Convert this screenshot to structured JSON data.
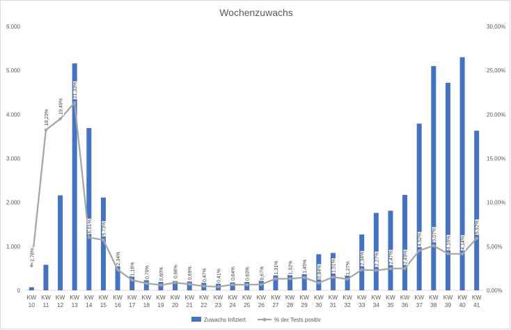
{
  "chart_data": {
    "type": "bar",
    "title": "Wochenzuwachs",
    "categories": [
      "KW 10",
      "KW 11",
      "KW 12",
      "KW 13",
      "KW 14",
      "KW 15",
      "KW 16",
      "KW 17",
      "KW 18",
      "KW 19",
      "KW 20",
      "KW 21",
      "KW 22",
      "KW 23",
      "KW 24",
      "KW 25",
      "KW 26",
      "KW 27",
      "KW 28",
      "KW 29",
      "KW 30",
      "KW 31",
      "KW 32",
      "KW 33",
      "KW 34",
      "KW 35",
      "KW 36",
      "KW 37",
      "KW 38",
      "KW 39",
      "KW 40",
      "KW 41"
    ],
    "y_ticks": [
      "0",
      "1.000",
      "2.000",
      "3.000",
      "4.000",
      "5.000",
      "6.000"
    ],
    "y2_ticks": [
      "0,00%",
      "5,00%",
      "10,00%",
      "15,00%",
      "20,00%",
      "25,00%",
      "30,00%"
    ],
    "ylim": [
      0,
      6000
    ],
    "y2lim": [
      0,
      30
    ],
    "grid": false,
    "legend_position": "bottom",
    "series": [
      {
        "name": "Zuwachs Infiziert",
        "type": "bar",
        "axis": "left",
        "color": "#4472c4",
        "values": [
          70,
          580,
          2160,
          5160,
          3690,
          2110,
          560,
          330,
          230,
          190,
          210,
          200,
          170,
          150,
          180,
          190,
          220,
          340,
          350,
          370,
          820,
          850,
          340,
          1270,
          1760,
          1810,
          2170,
          3790,
          5100,
          4720,
          5300,
          3630
        ]
      },
      {
        "name": "% der Tests positiv",
        "type": "line",
        "axis": "right",
        "color": "#a5a5a5",
        "values": [
          2.78,
          18.23,
          19.49,
          21.33,
          6.01,
          5.73,
          2.34,
          1.16,
          0.79,
          0.6,
          0.86,
          0.69,
          0.47,
          0.41,
          0.64,
          0.63,
          0.67,
          1.31,
          1.32,
          1.45,
          0.84,
          1.51,
          1.27,
          2.34,
          2.27,
          2.47,
          2.49,
          4.52,
          5.07,
          4.16,
          4.14,
          5.92
        ],
        "labels": [
          "2,78%",
          "18,23%",
          "19,49%",
          "21,33%",
          "6,01%",
          "5,73%",
          "2,34%",
          "1,16%",
          "0,79%",
          "0,60%",
          "0,86%",
          "0,69%",
          "0,47%",
          "0,41%",
          "0,64%",
          "0,63%",
          "0,67%",
          "1,31%",
          "1,32%",
          "1,45%",
          "0,84%",
          "1,51%",
          "1,27%",
          "2,34%",
          "2,27%",
          "2,47%",
          "2,49%",
          "4,52%",
          "5,07%",
          "4,16%",
          "4,14%",
          "5,92%"
        ]
      }
    ]
  }
}
